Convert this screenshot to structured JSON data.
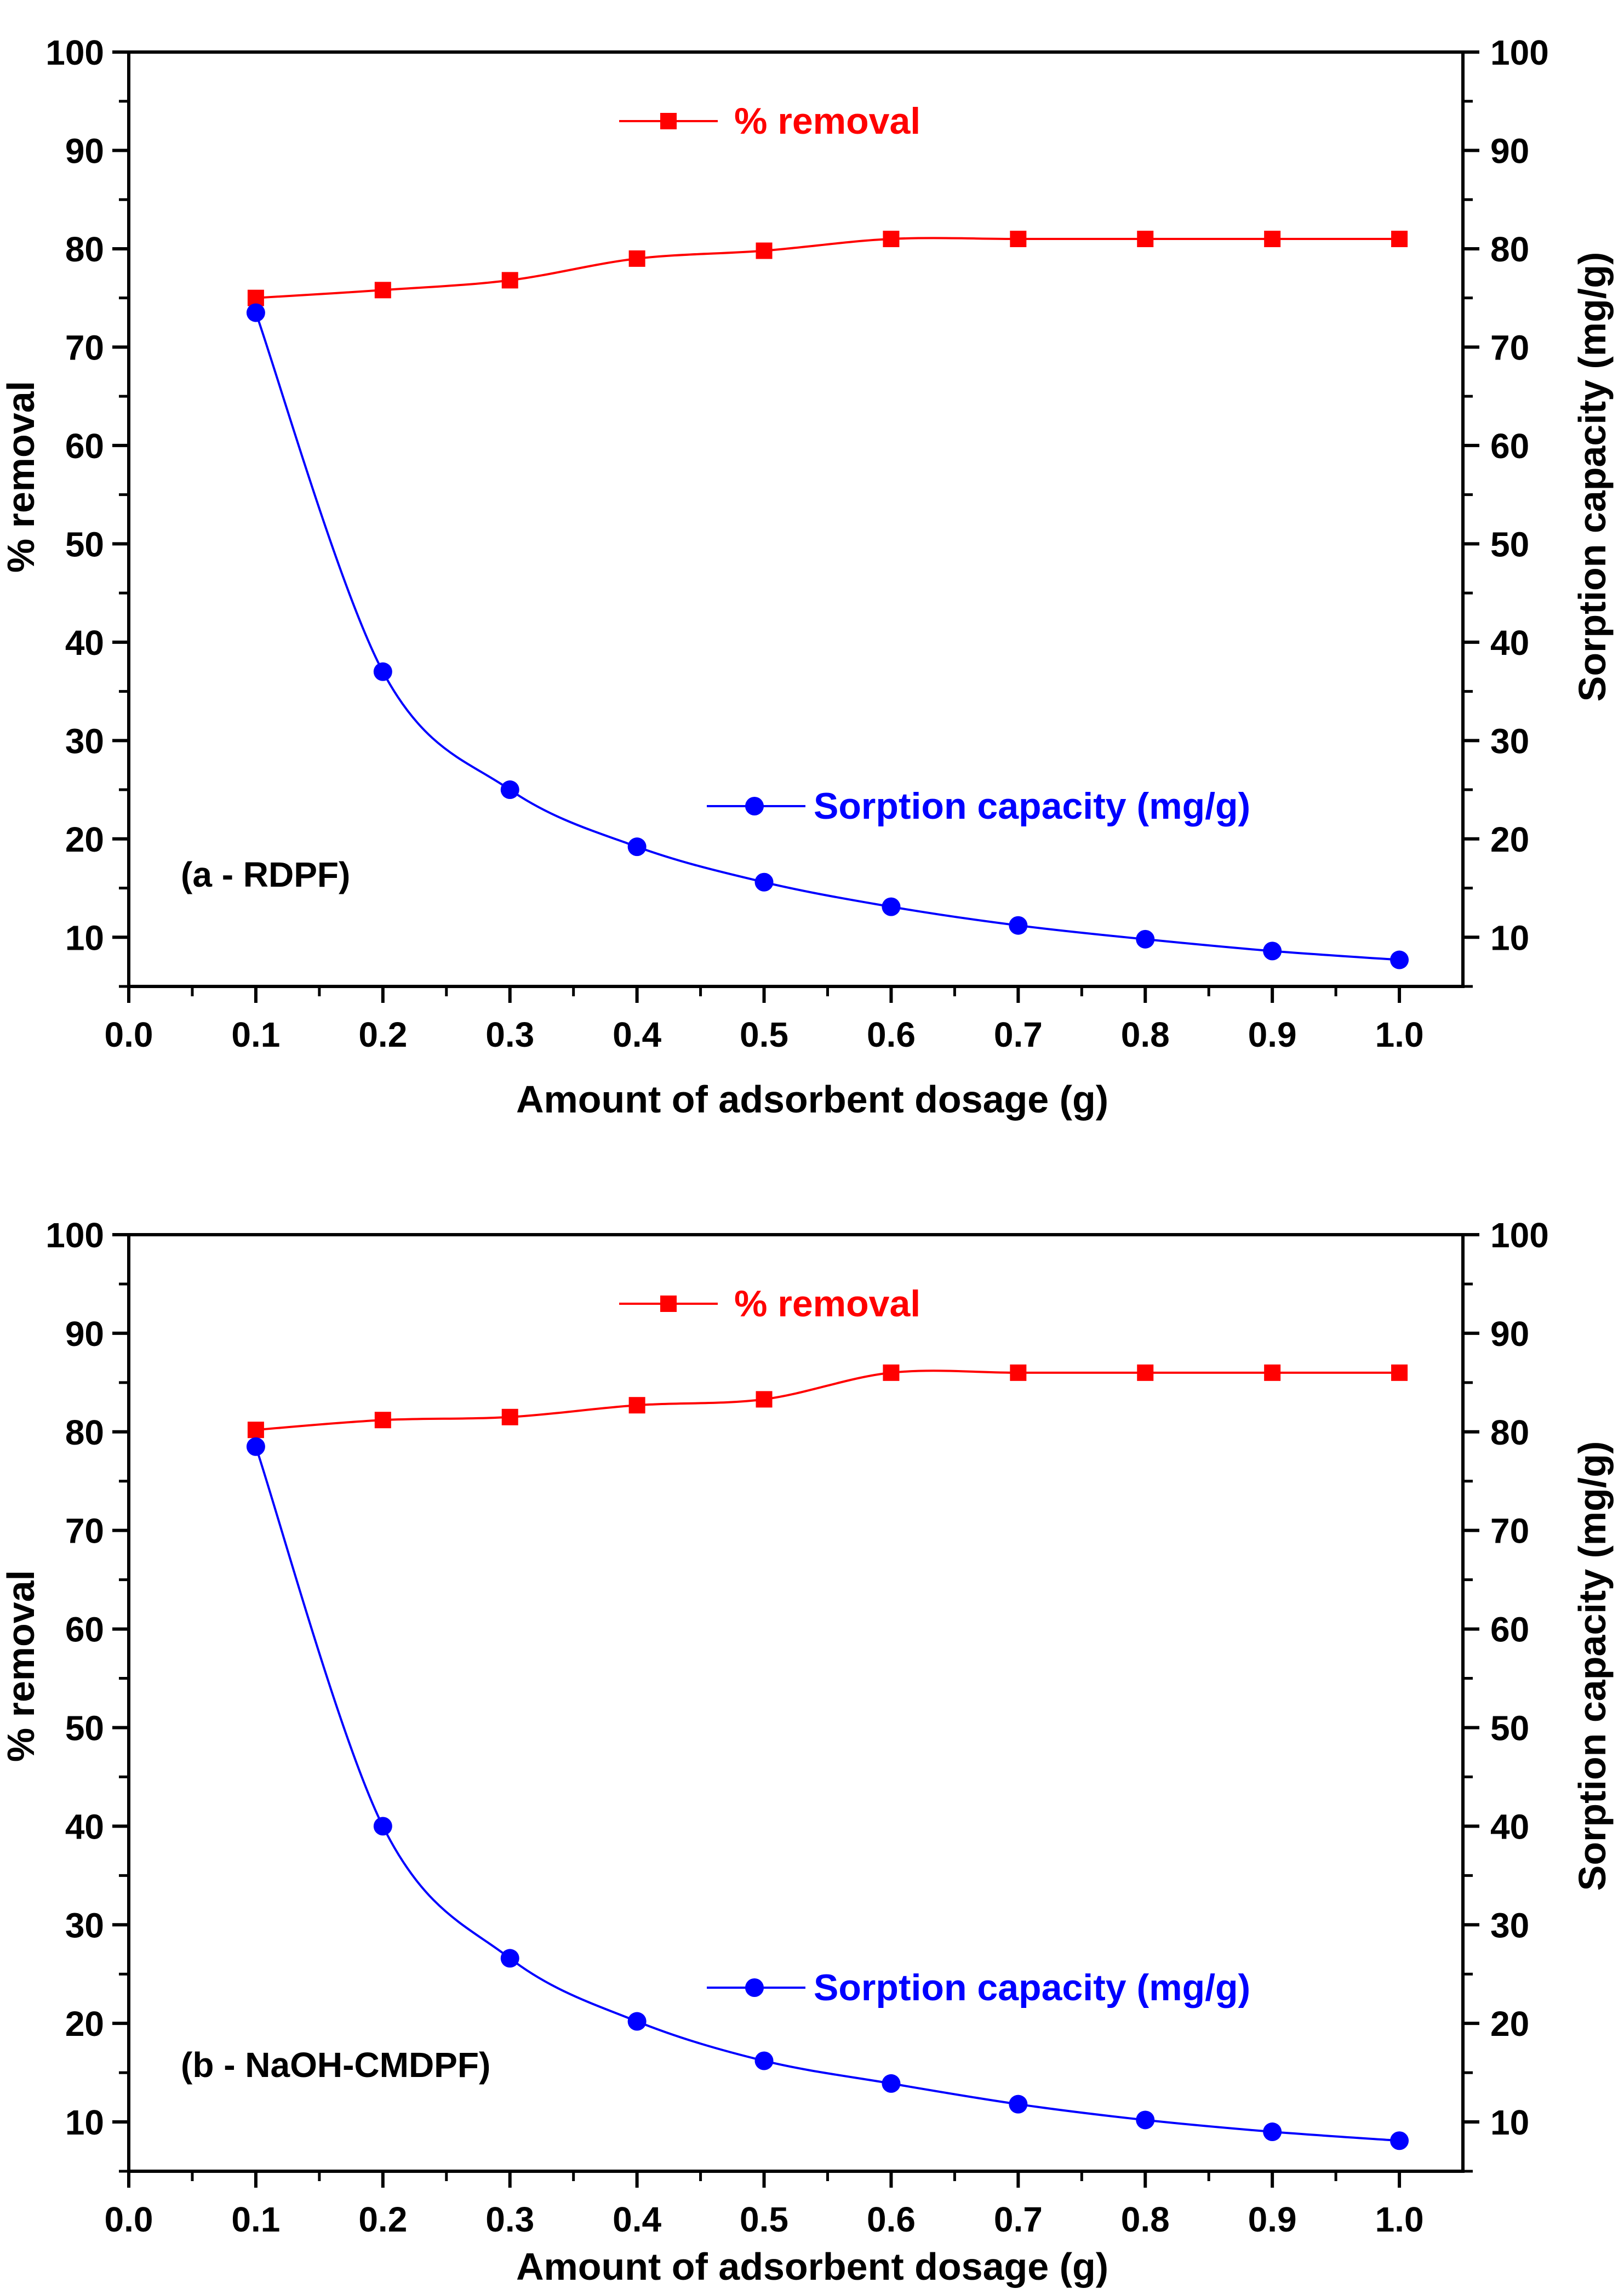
{
  "chart_data": [
    {
      "type": "line",
      "panel_label": "(a - RDPF)",
      "xlabel": "Amount of adsorbent dosage (g)",
      "ylabel_left": "% removal",
      "ylabel_right": "Sorption capacity (mg/g)",
      "xlim": [
        0.0,
        1.05
      ],
      "ylim_left": [
        5,
        100
      ],
      "ylim_right": [
        5,
        100
      ],
      "x_ticks": [
        "0.0",
        "0.1",
        "0.2",
        "0.3",
        "0.4",
        "0.5",
        "0.6",
        "0.7",
        "0.8",
        "0.9",
        "1.0"
      ],
      "y_ticks_left": [
        "10",
        "20",
        "30",
        "40",
        "50",
        "60",
        "70",
        "80",
        "90",
        "100"
      ],
      "y_ticks_right": [
        "10",
        "20",
        "30",
        "40",
        "50",
        "60",
        "70",
        "80",
        "90",
        "100"
      ],
      "x": [
        0.1,
        0.2,
        0.3,
        0.4,
        0.5,
        0.6,
        0.7,
        0.8,
        0.9,
        1.0
      ],
      "series": [
        {
          "name": "% removal",
          "axis": "left",
          "marker": "square",
          "color": "#ff0000",
          "legend_position": "top-center",
          "values": [
            75.0,
            75.8,
            76.8,
            79.0,
            79.8,
            81.0,
            81.0,
            81.0,
            81.0,
            81.0
          ]
        },
        {
          "name": "Sorption capacity (mg/g)",
          "axis": "right",
          "marker": "circle",
          "color": "#0000ff",
          "legend_position": "middle-right",
          "values": [
            73.5,
            37.0,
            25.0,
            19.2,
            15.6,
            13.1,
            11.2,
            9.8,
            8.6,
            7.7
          ]
        }
      ]
    },
    {
      "type": "line",
      "panel_label": "(b - NaOH-CMDPF)",
      "xlabel": "Amount of adsorbent dosage (g)",
      "ylabel_left": "% removal",
      "ylabel_right": "Sorption capacity (mg/g)",
      "xlim": [
        0.0,
        1.05
      ],
      "ylim_left": [
        5,
        100
      ],
      "ylim_right": [
        5,
        100
      ],
      "x_ticks": [
        "0.0",
        "0.1",
        "0.2",
        "0.3",
        "0.4",
        "0.5",
        "0.6",
        "0.7",
        "0.8",
        "0.9",
        "1.0"
      ],
      "y_ticks_left": [
        "10",
        "20",
        "30",
        "40",
        "50",
        "60",
        "70",
        "80",
        "90",
        "100"
      ],
      "y_ticks_right": [
        "10",
        "20",
        "30",
        "40",
        "50",
        "60",
        "70",
        "80",
        "90",
        "100"
      ],
      "x": [
        0.1,
        0.2,
        0.3,
        0.4,
        0.5,
        0.6,
        0.7,
        0.8,
        0.9,
        1.0
      ],
      "series": [
        {
          "name": "% removal",
          "axis": "left",
          "marker": "square",
          "color": "#ff0000",
          "legend_position": "top-center",
          "values": [
            80.2,
            81.2,
            81.5,
            82.7,
            83.3,
            86.0,
            86.0,
            86.0,
            86.0,
            86.0
          ]
        },
        {
          "name": "Sorption capacity (mg/g)",
          "axis": "right",
          "marker": "circle",
          "color": "#0000ff",
          "legend_position": "middle-right",
          "values": [
            78.5,
            40.0,
            26.6,
            20.2,
            16.2,
            13.9,
            11.8,
            10.2,
            9.0,
            8.1
          ]
        }
      ]
    }
  ]
}
